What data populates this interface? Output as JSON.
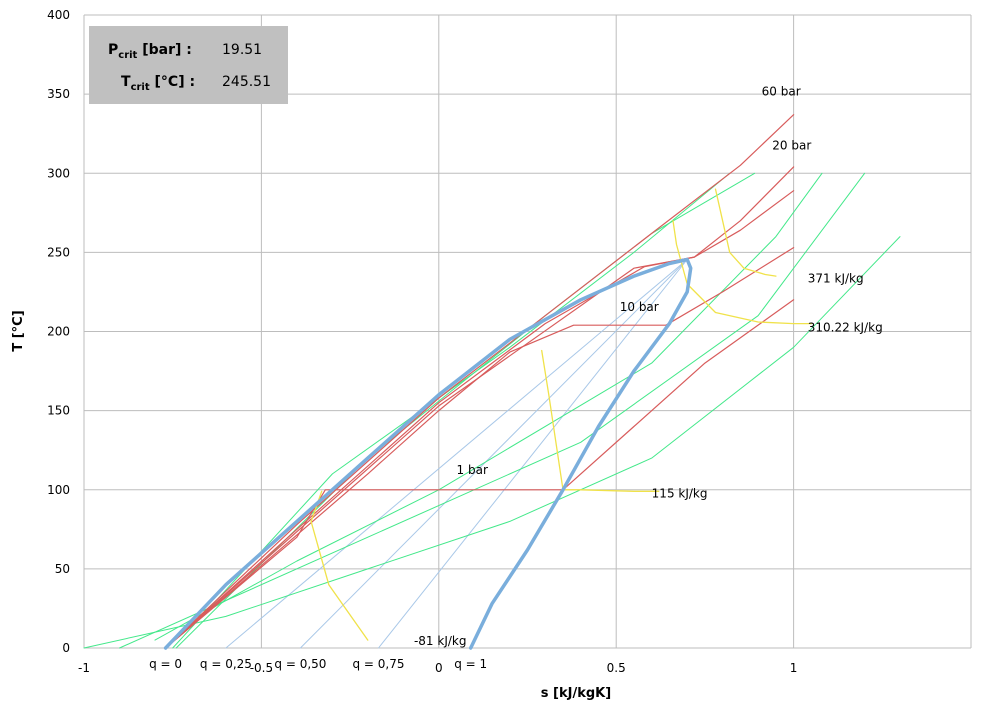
{
  "chart_data": {
    "type": "line",
    "xlabel": "s  [kJ/kgK]",
    "ylabel": "T  [°C]",
    "xlim": [
      -1,
      1.5
    ],
    "ylim": [
      0,
      400
    ],
    "x_ticks": [
      {
        "value": -1,
        "label": "-1"
      },
      {
        "value": -0.5,
        "label": "-0.5"
      },
      {
        "value": 0,
        "label": "0"
      },
      {
        "value": 0.5,
        "label": "0.5"
      },
      {
        "value": 1,
        "label": "1"
      }
    ],
    "y_ticks": [
      0,
      50,
      100,
      150,
      200,
      250,
      300,
      350,
      400
    ],
    "grid": true,
    "critical_point": {
      "p_label": "P",
      "p_sub": "crit",
      "p_unit": " [bar] :",
      "p_value": "19.51",
      "t_label": "T",
      "t_sub": "crit",
      "t_unit": " [°C] :",
      "t_value": "245.51",
      "s": 0.7,
      "T": 245.51
    },
    "quality_labels": [
      {
        "label": "q = 0",
        "s": -0.77
      },
      {
        "label": "q = 0,25",
        "s": -0.6
      },
      {
        "label": "q = 0,50",
        "s": -0.39
      },
      {
        "label": "q = 0,75",
        "s": -0.17
      },
      {
        "label": "q = 1",
        "s": 0.09
      }
    ],
    "colors": {
      "saturation": "#7aaedc",
      "quality": "#a9c8e8",
      "isobar": "#d85c5c",
      "isenthalp": "#f0e24a",
      "isochore": "#43e88a",
      "grid": "#bdbdbd",
      "crit_box": "#c0c0c0"
    },
    "series": [
      {
        "kind": "saturation",
        "points": [
          [
            -0.77,
            0
          ],
          [
            -0.6,
            40
          ],
          [
            -0.4,
            80
          ],
          [
            -0.2,
            120
          ],
          [
            0,
            160
          ],
          [
            0.2,
            195
          ],
          [
            0.4,
            220
          ],
          [
            0.55,
            235
          ],
          [
            0.65,
            243
          ],
          [
            0.7,
            245.51
          ],
          [
            0.71,
            240
          ],
          [
            0.7,
            225
          ],
          [
            0.65,
            205
          ],
          [
            0.55,
            175
          ],
          [
            0.45,
            140
          ],
          [
            0.35,
            100
          ],
          [
            0.25,
            62
          ],
          [
            0.15,
            28
          ],
          [
            0.09,
            0
          ]
        ]
      },
      {
        "kind": "quality",
        "points": [
          [
            -0.6,
            0
          ],
          [
            0.7,
            245.51
          ]
        ]
      },
      {
        "kind": "quality",
        "points": [
          [
            -0.39,
            0
          ],
          [
            0.7,
            245.51
          ]
        ]
      },
      {
        "kind": "quality",
        "points": [
          [
            -0.17,
            0
          ],
          [
            0.7,
            245.51
          ]
        ]
      },
      {
        "kind": "isobar",
        "name": "1 bar",
        "points": [
          [
            -0.77,
            0
          ],
          [
            -0.4,
            70
          ],
          [
            -0.32,
            100
          ],
          [
            0.35,
            100
          ],
          [
            0.55,
            140
          ],
          [
            0.75,
            180
          ],
          [
            1,
            220
          ]
        ]
      },
      {
        "kind": "isobar",
        "name": "10 bar",
        "points": [
          [
            -0.77,
            0
          ],
          [
            -0.2,
            110
          ],
          [
            0,
            150
          ],
          [
            0.2,
            187
          ],
          [
            0.38,
            204
          ],
          [
            0.64,
            204
          ],
          [
            0.8,
            225
          ],
          [
            1,
            253
          ]
        ]
      },
      {
        "kind": "isobar",
        "name": "20 bar",
        "points": [
          [
            -0.77,
            0
          ],
          [
            -0.4,
            75
          ],
          [
            0,
            155
          ],
          [
            0.3,
            205
          ],
          [
            0.58,
            241
          ],
          [
            0.72,
            247
          ],
          [
            0.85,
            270
          ],
          [
            1,
            304
          ]
        ]
      },
      {
        "kind": "isobar",
        "name": "60 bar",
        "points": [
          [
            -0.77,
            0
          ],
          [
            -0.4,
            78
          ],
          [
            0,
            158
          ],
          [
            0.3,
            210
          ],
          [
            0.6,
            262
          ],
          [
            0.85,
            305
          ],
          [
            1,
            337
          ]
        ]
      },
      {
        "kind": "isobar",
        "name": "",
        "points": [
          [
            -0.77,
            0
          ],
          [
            0,
            153
          ],
          [
            0.55,
            240
          ],
          [
            0.72,
            247
          ],
          [
            0.85,
            264
          ],
          [
            1,
            289
          ]
        ]
      },
      {
        "kind": "isenthalp",
        "name": "-81 kJ/kg",
        "points": [
          [
            -0.33,
            99
          ],
          [
            -0.36,
            80
          ],
          [
            -0.31,
            40
          ],
          [
            -0.2,
            5
          ]
        ]
      },
      {
        "kind": "isenthalp",
        "name": "115 kJ/kg",
        "points": [
          [
            0.29,
            188
          ],
          [
            0.31,
            160
          ],
          [
            0.33,
            130
          ],
          [
            0.35,
            100
          ],
          [
            0.4,
            100
          ],
          [
            0.55,
            99
          ],
          [
            0.62,
            99
          ]
        ]
      },
      {
        "kind": "isenthalp",
        "name": "310.22 kJ/kg",
        "points": [
          [
            0.66,
            270
          ],
          [
            0.67,
            255
          ],
          [
            0.7,
            230
          ],
          [
            0.78,
            212
          ],
          [
            0.9,
            206
          ],
          [
            1.0,
            205
          ],
          [
            1.05,
            205
          ]
        ]
      },
      {
        "kind": "isenthalp",
        "name": "371 kJ/kg",
        "points": [
          [
            0.78,
            290
          ],
          [
            0.8,
            270
          ],
          [
            0.82,
            250
          ],
          [
            0.86,
            240
          ],
          [
            0.92,
            236
          ],
          [
            0.95,
            235
          ]
        ]
      },
      {
        "kind": "isochore",
        "points": [
          [
            -0.75,
            0
          ],
          [
            -0.3,
            110
          ],
          [
            0.2,
            190
          ],
          [
            0.55,
            250
          ],
          [
            0.82,
            300
          ]
        ]
      },
      {
        "kind": "isochore",
        "points": [
          [
            -0.74,
            0
          ],
          [
            -0.2,
            120
          ],
          [
            0.3,
            210
          ],
          [
            0.6,
            262
          ],
          [
            0.89,
            300
          ]
        ]
      },
      {
        "kind": "isochore",
        "points": [
          [
            -0.8,
            5
          ],
          [
            -0.4,
            55
          ],
          [
            0,
            100
          ],
          [
            0.6,
            180
          ],
          [
            0.95,
            260
          ],
          [
            1.08,
            300
          ]
        ]
      },
      {
        "kind": "isochore",
        "points": [
          [
            -0.9,
            0
          ],
          [
            -0.6,
            30
          ],
          [
            -0.2,
            70
          ],
          [
            0.4,
            130
          ],
          [
            0.9,
            210
          ],
          [
            1.2,
            300
          ]
        ]
      },
      {
        "kind": "isochore",
        "points": [
          [
            -1,
            0
          ],
          [
            -0.6,
            20
          ],
          [
            -0.2,
            50
          ],
          [
            0.2,
            80
          ],
          [
            0.6,
            120
          ],
          [
            1.0,
            190
          ],
          [
            1.3,
            260
          ]
        ]
      }
    ],
    "curve_labels": [
      {
        "text": "60 bar",
        "s": 0.91,
        "T": 349
      },
      {
        "text": "20 bar",
        "s": 0.94,
        "T": 315
      },
      {
        "text": "10 bar",
        "s": 0.51,
        "T": 213
      },
      {
        "text": "1 bar",
        "s": 0.05,
        "T": 110
      },
      {
        "text": "371 kJ/kg",
        "s": 1.04,
        "T": 231
      },
      {
        "text": "310.22 kJ/kg",
        "s": 1.04,
        "T": 200
      },
      {
        "text": "115 kJ/kg",
        "s": 0.6,
        "T": 95
      },
      {
        "text": "-81 kJ/kg",
        "s": -0.07,
        "T": 2
      }
    ]
  }
}
